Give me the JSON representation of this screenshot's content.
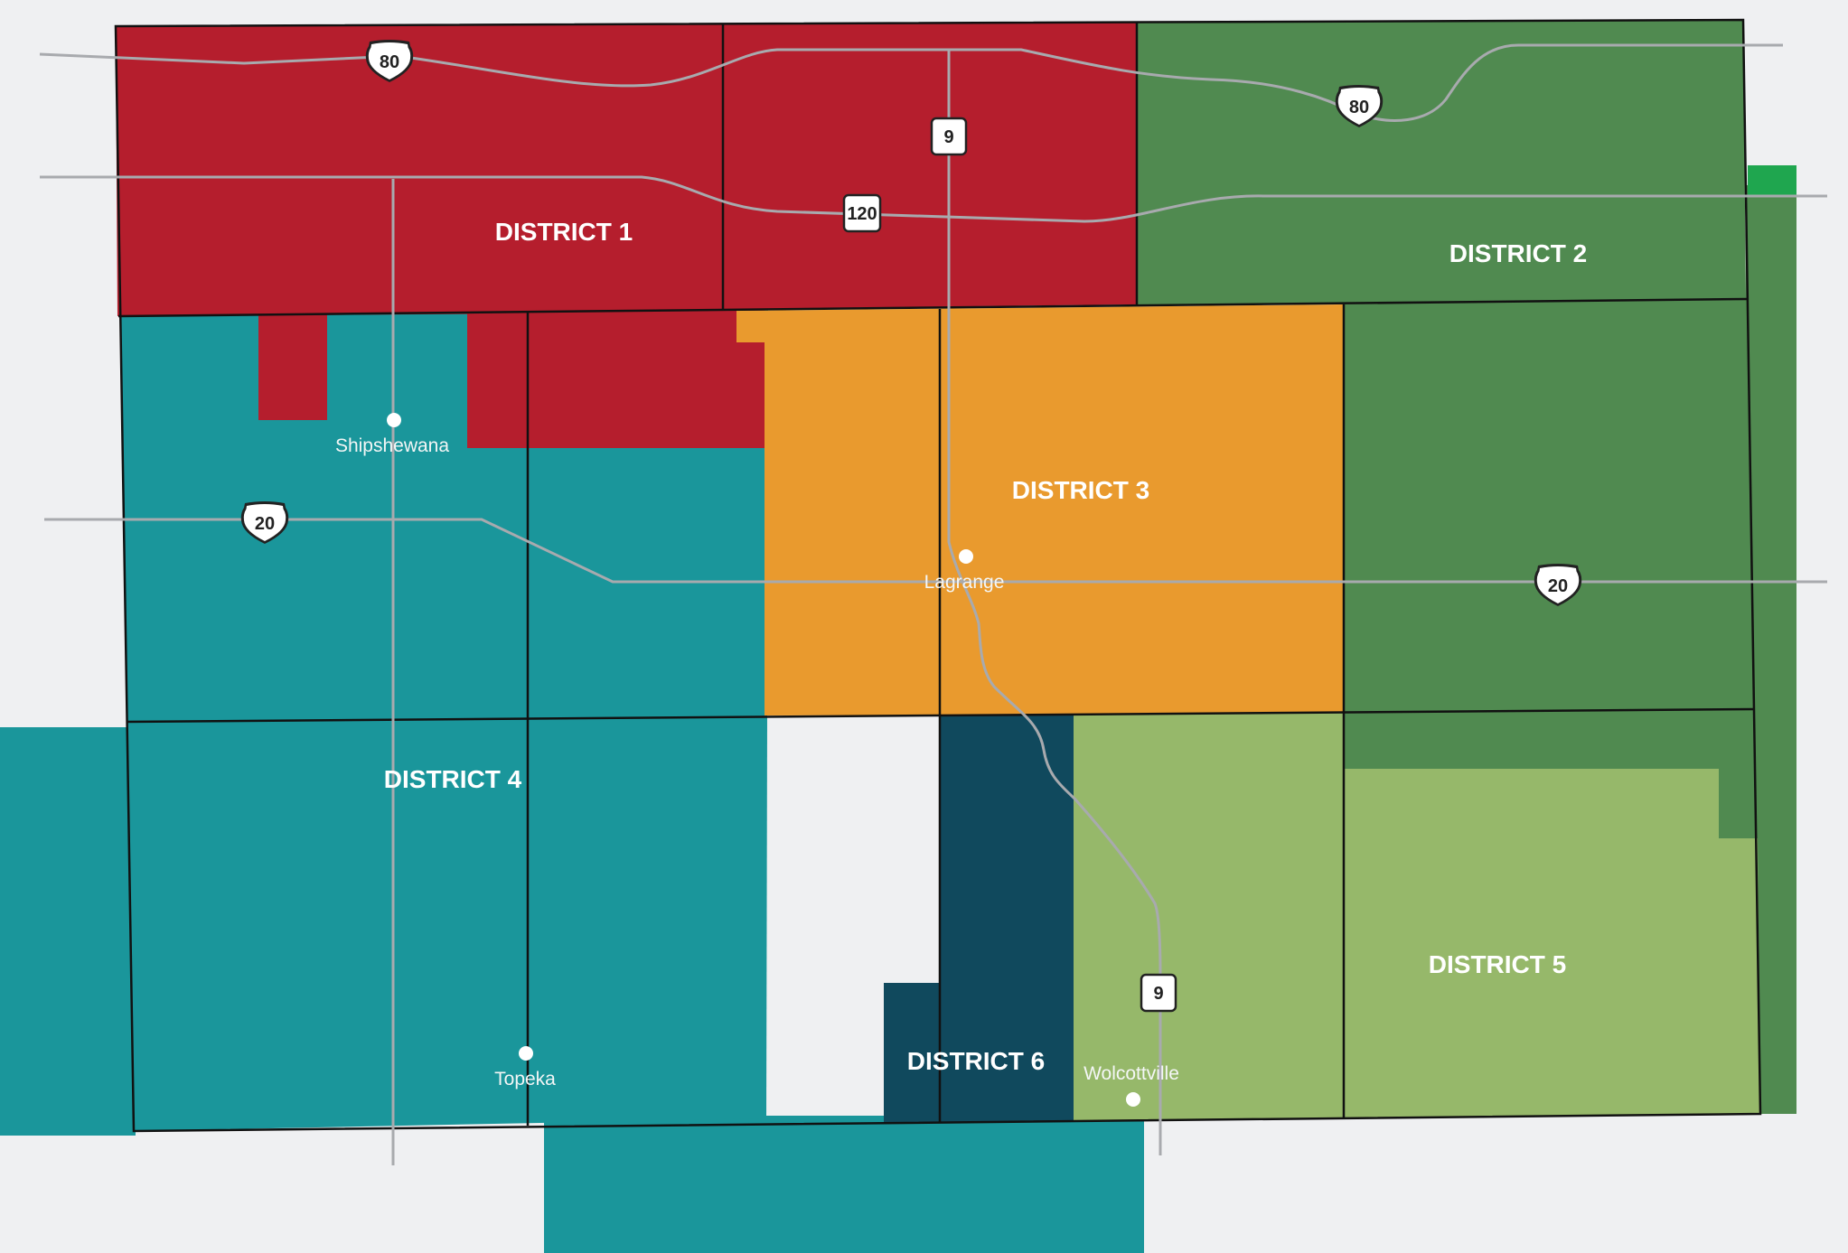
{
  "colors": {
    "background": "#eff0f2",
    "district_1": "#b51e2d",
    "district_2": "#508a50",
    "district_3": "#e99a2e",
    "district_4": "#1a969b",
    "district_5": "#96b86a",
    "district_6": "#10495d",
    "outside_green": "#1fa64f",
    "road": "#a8aaae",
    "boundary": "#111111"
  },
  "districts": [
    {
      "id": "d1",
      "label": "DISTRICT 1"
    },
    {
      "id": "d2",
      "label": "DISTRICT 2"
    },
    {
      "id": "d3",
      "label": "DISTRICT 3"
    },
    {
      "id": "d4",
      "label": "DISTRICT 4"
    },
    {
      "id": "d5",
      "label": "DISTRICT 5"
    },
    {
      "id": "d6",
      "label": "DISTRICT 6"
    }
  ],
  "towns": [
    {
      "id": "shipshewana",
      "label": "Shipshewana"
    },
    {
      "id": "lagrange",
      "label": "Lagrange"
    },
    {
      "id": "topeka",
      "label": "Topeka"
    },
    {
      "id": "wolcottville",
      "label": "Wolcottville"
    }
  ],
  "route_markers": [
    {
      "id": "us80-west",
      "type": "us-shield",
      "label": "80"
    },
    {
      "id": "us80-east",
      "type": "us-shield",
      "label": "80"
    },
    {
      "id": "sr9-north",
      "type": "state-box",
      "label": "9"
    },
    {
      "id": "sr120",
      "type": "state-box",
      "label": "120"
    },
    {
      "id": "us20-west",
      "type": "us-shield",
      "label": "20"
    },
    {
      "id": "us20-east",
      "type": "us-shield",
      "label": "20"
    },
    {
      "id": "sr9-south",
      "type": "state-box",
      "label": "9"
    }
  ]
}
